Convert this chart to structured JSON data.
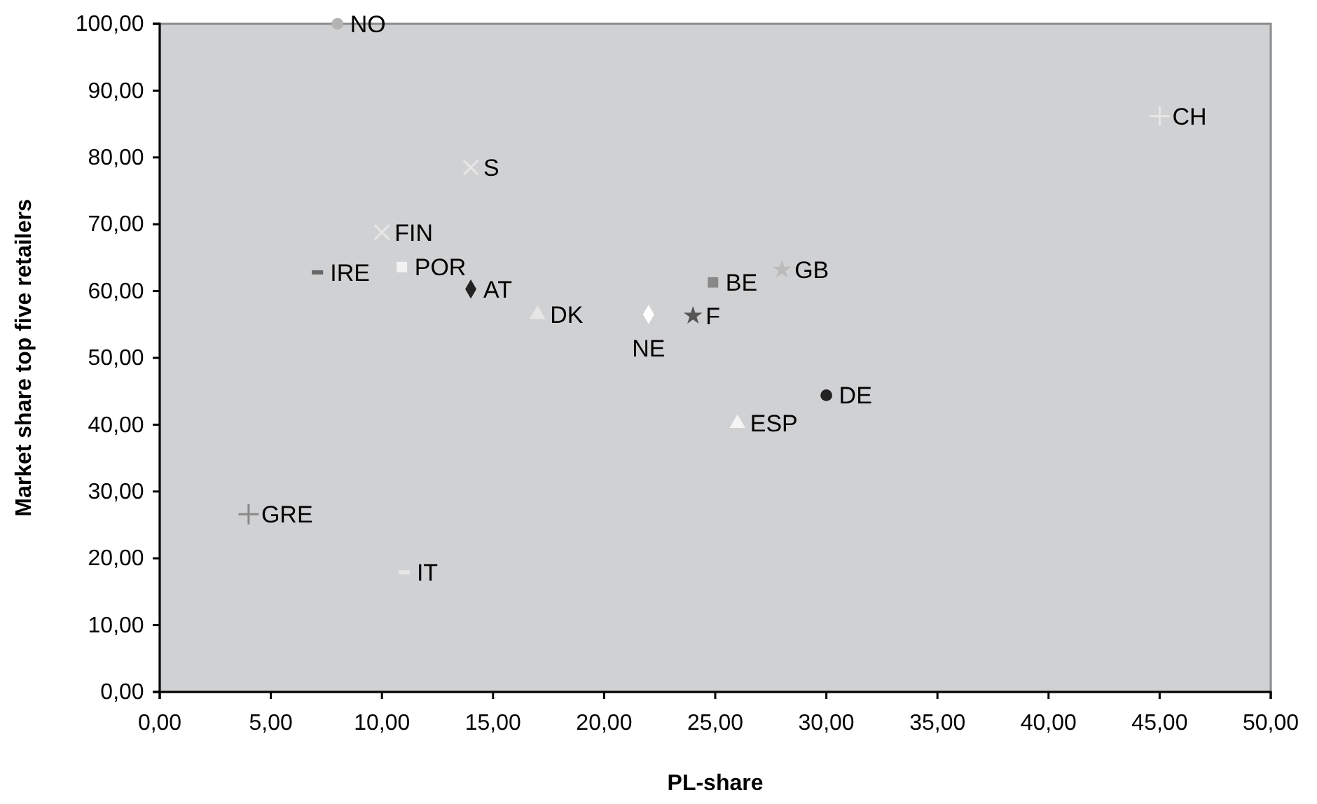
{
  "chart_data": {
    "type": "scatter",
    "xlabel": "PL-share",
    "ylabel": "Market share top five retailers",
    "xlim": [
      0,
      50
    ],
    "ylim": [
      0,
      100
    ],
    "xticks": [
      {
        "value": 0,
        "label": "0,00"
      },
      {
        "value": 5,
        "label": "5,00"
      },
      {
        "value": 10,
        "label": "10,00"
      },
      {
        "value": 15,
        "label": "15,00"
      },
      {
        "value": 20,
        "label": "20,00"
      },
      {
        "value": 25,
        "label": "25,00"
      },
      {
        "value": 30,
        "label": "30,00"
      },
      {
        "value": 35,
        "label": "35,00"
      },
      {
        "value": 40,
        "label": "40,00"
      },
      {
        "value": 45,
        "label": "45,00"
      },
      {
        "value": 50,
        "label": "50,00"
      }
    ],
    "yticks": [
      {
        "value": 0,
        "label": "0,00"
      },
      {
        "value": 10,
        "label": "10,00"
      },
      {
        "value": 20,
        "label": "20,00"
      },
      {
        "value": 30,
        "label": "30,00"
      },
      {
        "value": 40,
        "label": "40,00"
      },
      {
        "value": 50,
        "label": "50,00"
      },
      {
        "value": 60,
        "label": "60,00"
      },
      {
        "value": 70,
        "label": "70,00"
      },
      {
        "value": 80,
        "label": "80,00"
      },
      {
        "value": 90,
        "label": "90,00"
      },
      {
        "value": 100,
        "label": "100,00"
      }
    ],
    "grid": false,
    "legend": false,
    "series": [
      {
        "name": "NO",
        "color": "#b3b3b3",
        "marker": "circle",
        "x": [
          8
        ],
        "values": [
          100
        ]
      },
      {
        "name": "S",
        "color": "#e6e6e6",
        "marker": "cross",
        "x": [
          14
        ],
        "values": [
          78.5
        ]
      },
      {
        "name": "FIN",
        "color": "#e6e6e6",
        "marker": "cross",
        "x": [
          10
        ],
        "values": [
          68.8
        ]
      },
      {
        "name": "IRE",
        "color": "#666666",
        "x": [
          7.1
        ],
        "values": [
          62.8
        ]
      },
      {
        "name": "POR",
        "color": "#f2f2f2",
        "marker": "square",
        "x": [
          10.9
        ],
        "values": [
          63.6
        ]
      },
      {
        "name": "AT",
        "color": "#222222",
        "marker": "diamond",
        "x": [
          14
        ],
        "values": [
          60.3
        ]
      },
      {
        "name": "DK",
        "color": "#e6e6e6",
        "marker": "triangle",
        "x": [
          17
        ],
        "values": [
          56.5
        ]
      },
      {
        "name": "NE",
        "color": "#ffffff",
        "marker": "diamond",
        "x": [
          22
        ],
        "values": [
          56.5
        ]
      },
      {
        "name": "F",
        "color": "#555555",
        "marker": "star",
        "x": [
          24
        ],
        "values": [
          56.3
        ]
      },
      {
        "name": "BE",
        "color": "#888888",
        "marker": "square",
        "x": [
          24.9
        ],
        "values": [
          61.3
        ]
      },
      {
        "name": "GB",
        "color": "#bbbbbb",
        "marker": "star",
        "x": [
          28
        ],
        "values": [
          63.2
        ]
      },
      {
        "name": "DE",
        "color": "#222222",
        "marker": "circle",
        "x": [
          30
        ],
        "values": [
          44.4
        ]
      },
      {
        "name": "ESP",
        "color": "#f5f5f5",
        "marker": "triangle",
        "x": [
          26
        ],
        "values": [
          40.2
        ]
      },
      {
        "name": "GRE",
        "color": "#888888",
        "marker": "plus",
        "x": [
          4
        ],
        "values": [
          26.6
        ]
      },
      {
        "name": "IT",
        "color": "#e6e6e6",
        "x": [
          11
        ],
        "values": [
          17.9
        ]
      },
      {
        "name": "CH",
        "color": "#e6e6e6",
        "marker": "plus",
        "x": [
          45
        ],
        "values": [
          86.2
        ]
      }
    ]
  }
}
